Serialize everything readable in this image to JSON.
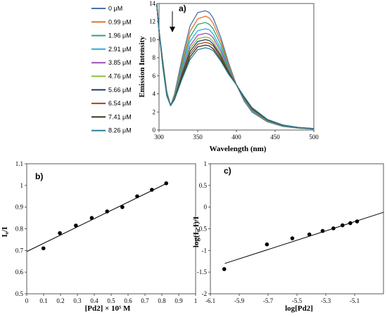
{
  "chart_data": [
    {
      "type": "line",
      "panel_label": "a)",
      "xlabel": "Wavelength (nm)",
      "ylabel": "Emission Intensity",
      "xlim": [
        300,
        500
      ],
      "ylim": [
        0,
        14
      ],
      "xticks": [
        "300",
        "350",
        "400",
        "450",
        "500"
      ],
      "yticks": [
        "0",
        "2",
        "4",
        "6",
        "8",
        "10",
        "12",
        "14"
      ],
      "legend_position": "left",
      "grid": false,
      "annotation": "arrow pointing down (decreasing intensity)",
      "x": [
        297,
        300,
        305,
        310,
        315,
        320,
        330,
        340,
        350,
        360,
        365,
        370,
        380,
        390,
        400,
        410,
        420,
        440,
        460,
        480,
        500
      ],
      "series": [
        {
          "name": "0 μM",
          "color": "#4a72a8",
          "values": [
            14,
            11.0,
            7.6,
            4.3,
            2.7,
            4.0,
            8.0,
            11.5,
            13.0,
            13.2,
            13.0,
            12.4,
            10.2,
            7.4,
            5.0,
            3.2,
            2.0,
            0.9,
            0.4,
            0.2,
            0.1
          ]
        },
        {
          "name": "0.99 μM",
          "color": "#e3742b",
          "values": [
            14,
            11.0,
            7.5,
            4.2,
            2.7,
            3.9,
            7.6,
            10.9,
            12.3,
            12.6,
            12.4,
            11.8,
            9.8,
            7.2,
            5.0,
            3.3,
            2.1,
            0.9,
            0.45,
            0.2,
            0.1
          ]
        },
        {
          "name": "1.96 μM",
          "color": "#2fa86b",
          "values": [
            14,
            11.0,
            7.4,
            4.2,
            2.7,
            3.8,
            7.3,
            10.3,
            11.7,
            11.9,
            11.7,
            11.2,
            9.4,
            7.0,
            5.0,
            3.35,
            2.15,
            0.95,
            0.45,
            0.22,
            0.12
          ]
        },
        {
          "name": "2.91 μM",
          "color": "#2bb0d8",
          "values": [
            14,
            11.0,
            7.3,
            4.1,
            2.7,
            3.7,
            7.0,
            9.8,
            11.0,
            11.2,
            11.1,
            10.6,
            9.0,
            6.8,
            5.0,
            3.4,
            2.2,
            1.0,
            0.5,
            0.25,
            0.13
          ]
        },
        {
          "name": "3.85 μM",
          "color": "#9c4fb8",
          "values": [
            14,
            11.0,
            7.2,
            4.0,
            2.7,
            3.6,
            6.7,
            9.3,
            10.5,
            10.7,
            10.6,
            10.2,
            8.7,
            6.7,
            5.0,
            3.45,
            2.25,
            1.05,
            0.5,
            0.25,
            0.14
          ]
        },
        {
          "name": "4.76 μM",
          "color": "#8bbd3b",
          "values": [
            14,
            11.0,
            7.2,
            4.0,
            2.7,
            3.55,
            6.5,
            9.0,
            10.1,
            10.3,
            10.2,
            9.8,
            8.4,
            6.55,
            5.0,
            3.5,
            2.3,
            1.08,
            0.52,
            0.26,
            0.15
          ]
        },
        {
          "name": "5.66 μM",
          "color": "#1f3f66",
          "values": [
            14,
            11.0,
            7.1,
            3.9,
            2.7,
            3.5,
            6.3,
            8.7,
            9.8,
            10.0,
            9.9,
            9.5,
            8.2,
            6.45,
            5.0,
            3.55,
            2.35,
            1.1,
            0.53,
            0.27,
            0.15
          ]
        },
        {
          "name": "6.54 μM",
          "color": "#9a4a1a",
          "values": [
            14,
            11.0,
            7.0,
            3.9,
            2.7,
            3.45,
            6.1,
            8.4,
            9.5,
            9.7,
            9.6,
            9.3,
            8.0,
            6.35,
            5.0,
            3.6,
            2.4,
            1.12,
            0.54,
            0.28,
            0.16
          ]
        },
        {
          "name": "7.41 μM",
          "color": "#2a3a1c",
          "values": [
            14,
            11.0,
            7.0,
            3.8,
            2.7,
            3.4,
            5.9,
            8.1,
            9.2,
            9.4,
            9.3,
            9.0,
            7.8,
            6.25,
            5.0,
            3.65,
            2.45,
            1.15,
            0.55,
            0.28,
            0.16
          ]
        },
        {
          "name": "8.26 μM",
          "color": "#2e7d99",
          "values": [
            14,
            11.0,
            6.9,
            3.8,
            2.7,
            3.35,
            5.7,
            7.8,
            8.9,
            9.1,
            9.0,
            8.8,
            7.6,
            6.15,
            5.0,
            3.7,
            2.5,
            1.18,
            0.56,
            0.29,
            0.17
          ]
        }
      ]
    },
    {
      "type": "scatter",
      "panel_label": "b)",
      "xlabel": "[Pd2] × 10⁵ M",
      "ylabel": "I₀/I",
      "xlim": [
        0,
        1
      ],
      "ylim": [
        0.5,
        1.1
      ],
      "xticks": [
        "0",
        "0.1",
        "0.2",
        "0.3",
        "0.4",
        "0.5",
        "0.6",
        "0.7",
        "0.8",
        "0.9",
        "1"
      ],
      "yticks": [
        "0.5",
        "0.6",
        "0.7",
        "0.8",
        "0.9",
        "1",
        "1.1"
      ],
      "grid": false,
      "points": {
        "x": [
          0.099,
          0.196,
          0.291,
          0.385,
          0.476,
          0.566,
          0.654,
          0.741,
          0.826
        ],
        "y": [
          0.71,
          0.78,
          0.815,
          0.85,
          0.88,
          0.9,
          0.95,
          0.98,
          1.01
        ]
      },
      "fit_line": {
        "x": [
          0,
          0.83
        ],
        "y": [
          0.695,
          1.01
        ]
      }
    },
    {
      "type": "scatter",
      "panel_label": "c)",
      "xlabel": "log[Pd2]",
      "ylabel": "log(I₀-I)/I",
      "xlim": [
        -6.1,
        -4.9
      ],
      "ylim": [
        -2,
        1
      ],
      "xticks": [
        "-6.1",
        "-5.9",
        "-5.7",
        "-5.5",
        "-5.3",
        "-5.1"
      ],
      "yticks": [
        "-2",
        "-1.5",
        "-1",
        "-0.5",
        "0",
        "0.5",
        "1"
      ],
      "grid": false,
      "points": {
        "x": [
          -6.004,
          -5.708,
          -5.532,
          -5.414,
          -5.322,
          -5.247,
          -5.184,
          -5.13,
          -5.083
        ],
        "y": [
          -1.43,
          -0.86,
          -0.72,
          -0.63,
          -0.55,
          -0.49,
          -0.42,
          -0.37,
          -0.33
        ]
      },
      "fit_line": {
        "x": [
          -6.0,
          -4.9
        ],
        "y": [
          -1.3,
          -0.12
        ]
      }
    }
  ]
}
